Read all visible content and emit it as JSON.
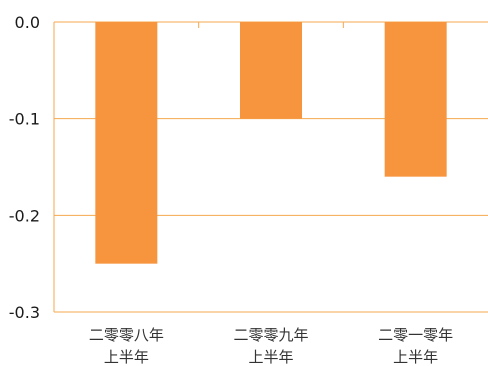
{
  "chart_data": {
    "type": "bar",
    "categories": [
      [
        "二零零八年",
        "上半年"
      ],
      [
        "二零零九年",
        "上半年"
      ],
      [
        "二零一零年",
        "上半年"
      ]
    ],
    "values": [
      -0.25,
      -0.1,
      -0.16
    ],
    "yticks": [
      "0.0",
      "-0.1",
      "-0.2",
      "-0.3"
    ],
    "ytick_values": [
      0.0,
      -0.1,
      -0.2,
      -0.3
    ],
    "ylim": [
      -0.3,
      0.0
    ],
    "title": "",
    "xlabel": "",
    "ylabel": "",
    "grid": true,
    "legend": "none",
    "bar_color": "#f7943e",
    "grid_color": "#f5a84e"
  }
}
